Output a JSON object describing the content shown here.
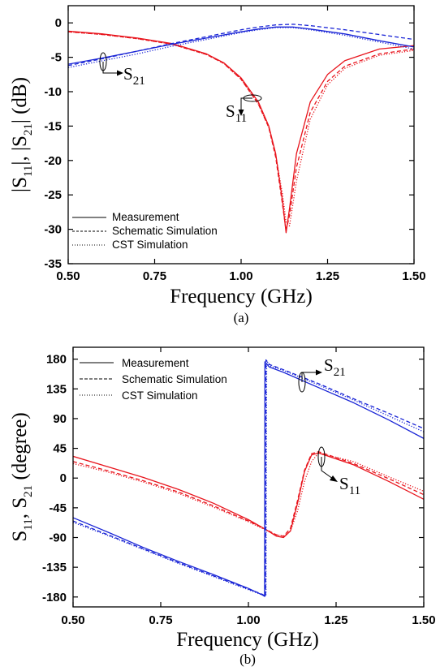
{
  "chart_data": [
    {
      "type": "line",
      "panel_label": "(a)",
      "xlabel": "Frequency (GHz)",
      "ylabel": "|S11|, |S21| (dB)",
      "ylabel_parts": {
        "a": "|S",
        "a_sub": "11",
        "b": "|, |S",
        "b_sub": "21",
        "c": "| (dB)"
      },
      "xlim": [
        0.5,
        1.5
      ],
      "ylim": [
        -35,
        2.5
      ],
      "x_ticks": [
        0.5,
        0.75,
        1.0,
        1.25,
        1.5
      ],
      "x_tick_labels": [
        "0.50",
        "0.75",
        "1.00",
        "1.25",
        "1.50"
      ],
      "y_ticks": [
        0,
        -5,
        -10,
        -15,
        -20,
        -25,
        -30,
        -35
      ],
      "y_tick_labels": [
        "0",
        "-5",
        "-10",
        "-15",
        "-20",
        "-25",
        "-30",
        "-35"
      ],
      "grid": false,
      "legend_position": "bottom-left",
      "legend": [
        {
          "label": "Measurement",
          "style": "solid"
        },
        {
          "label": "Schematic Simulation",
          "style": "dashed"
        },
        {
          "label": "CST Simulation",
          "style": "dotted"
        }
      ],
      "annotations": [
        {
          "text": "S",
          "sub": "21"
        },
        {
          "text": "S",
          "sub": "11"
        }
      ],
      "series": [
        {
          "name": "S11 Measurement",
          "color": "#e8141c",
          "style": "solid",
          "x": [
            0.5,
            0.6,
            0.7,
            0.8,
            0.9,
            0.95,
            1.0,
            1.05,
            1.08,
            1.1,
            1.12,
            1.13,
            1.14,
            1.16,
            1.2,
            1.25,
            1.3,
            1.4,
            1.5
          ],
          "y": [
            -1.2,
            -1.6,
            -2.2,
            -3.0,
            -4.5,
            -5.8,
            -8.0,
            -11.5,
            -15.0,
            -19.0,
            -26.0,
            -30.5,
            -27.0,
            -19.0,
            -11.5,
            -7.5,
            -5.5,
            -3.8,
            -3.3
          ]
        },
        {
          "name": "S11 Schematic Simulation",
          "color": "#e8141c",
          "style": "dashed",
          "x": [
            0.5,
            0.6,
            0.7,
            0.8,
            0.9,
            0.95,
            1.0,
            1.05,
            1.08,
            1.1,
            1.12,
            1.13,
            1.14,
            1.16,
            1.2,
            1.25,
            1.3,
            1.4,
            1.5
          ],
          "y": [
            -1.3,
            -1.7,
            -2.3,
            -3.1,
            -4.6,
            -5.9,
            -8.2,
            -11.8,
            -15.2,
            -19.5,
            -26.5,
            -30.2,
            -28.0,
            -21.0,
            -13.0,
            -8.5,
            -6.3,
            -4.5,
            -3.8
          ]
        },
        {
          "name": "S11 CST Simulation",
          "color": "#e8141c",
          "style": "dotted",
          "x": [
            0.5,
            0.6,
            0.7,
            0.8,
            0.9,
            0.95,
            1.0,
            1.05,
            1.08,
            1.1,
            1.12,
            1.13,
            1.14,
            1.16,
            1.2,
            1.25,
            1.3,
            1.4,
            1.5
          ],
          "y": [
            -1.3,
            -1.7,
            -2.3,
            -3.1,
            -4.6,
            -5.9,
            -8.2,
            -11.8,
            -15.2,
            -19.2,
            -25.0,
            -29.0,
            -29.5,
            -23.0,
            -14.0,
            -9.0,
            -6.6,
            -4.7,
            -4.0
          ]
        },
        {
          "name": "S21 Measurement",
          "color": "#1a25d6",
          "style": "solid",
          "x": [
            0.5,
            0.6,
            0.7,
            0.8,
            0.9,
            1.0,
            1.05,
            1.1,
            1.15,
            1.2,
            1.3,
            1.4,
            1.5
          ],
          "y": [
            -6.0,
            -5.1,
            -4.1,
            -3.1,
            -2.2,
            -1.3,
            -0.9,
            -0.6,
            -0.6,
            -0.9,
            -1.6,
            -2.6,
            -3.5
          ]
        },
        {
          "name": "S21 Schematic Simulation",
          "color": "#1a25d6",
          "style": "dashed",
          "x": [
            0.5,
            0.6,
            0.7,
            0.8,
            0.9,
            1.0,
            1.05,
            1.1,
            1.15,
            1.2,
            1.3,
            1.4,
            1.5
          ],
          "y": [
            -6.2,
            -5.2,
            -4.1,
            -3.0,
            -2.0,
            -1.0,
            -0.6,
            -0.3,
            -0.2,
            -0.4,
            -1.0,
            -1.7,
            -2.4
          ]
        },
        {
          "name": "S21 CST Simulation",
          "color": "#1a25d6",
          "style": "dotted",
          "x": [
            0.5,
            0.6,
            0.7,
            0.8,
            0.9,
            1.0,
            1.05,
            1.1,
            1.15,
            1.2,
            1.3,
            1.4,
            1.5
          ],
          "y": [
            -6.5,
            -5.5,
            -4.5,
            -3.4,
            -2.4,
            -1.4,
            -1.0,
            -0.7,
            -0.7,
            -1.0,
            -1.8,
            -2.8,
            -3.8
          ]
        }
      ]
    },
    {
      "type": "line",
      "panel_label": "(b)",
      "xlabel": "Frequency (GHz)",
      "ylabel": "S11, S21 (degree)",
      "ylabel_parts": {
        "a": "S",
        "a_sub": "11",
        "b": ", S",
        "b_sub": "21",
        "c": " (degree)"
      },
      "xlim": [
        0.5,
        1.5
      ],
      "ylim": [
        -195,
        198
      ],
      "x_ticks": [
        0.5,
        0.75,
        1.0,
        1.25,
        1.5
      ],
      "x_tick_labels": [
        "0.50",
        "0.75",
        "1.00",
        "1.25",
        "1.50"
      ],
      "y_ticks": [
        180,
        135,
        90,
        45,
        0,
        -45,
        -90,
        -135,
        -180
      ],
      "y_tick_labels": [
        "180",
        "135",
        "90",
        "45",
        "0",
        "-45",
        "-90",
        "-135",
        "-180"
      ],
      "grid": false,
      "legend_position": "top-left",
      "legend": [
        {
          "label": "Measurement",
          "style": "solid"
        },
        {
          "label": "Schematic Simulation",
          "style": "dashed"
        },
        {
          "label": "CST  Simulation",
          "style": "dotted"
        }
      ],
      "annotations": [
        {
          "text": "S",
          "sub": "21"
        },
        {
          "text": "S",
          "sub": "11"
        }
      ],
      "series": [
        {
          "name": "S11 Measurement",
          "color": "#e8141c",
          "style": "solid",
          "x": [
            0.5,
            0.6,
            0.7,
            0.8,
            0.9,
            1.0,
            1.05,
            1.08,
            1.1,
            1.12,
            1.14,
            1.16,
            1.18,
            1.2,
            1.3,
            1.4,
            1.5
          ],
          "y": [
            33,
            17,
            1,
            -17,
            -38,
            -63,
            -78,
            -88,
            -90,
            -80,
            -38,
            10,
            35,
            38,
            20,
            -5,
            -32
          ]
        },
        {
          "name": "S11 Schematic Simulation",
          "color": "#e8141c",
          "style": "dashed",
          "x": [
            0.5,
            0.6,
            0.7,
            0.8,
            0.9,
            1.0,
            1.05,
            1.08,
            1.1,
            1.12,
            1.14,
            1.16,
            1.18,
            1.2,
            1.3,
            1.4,
            1.5
          ],
          "y": [
            25,
            11,
            -4,
            -21,
            -42,
            -65,
            -78,
            -86,
            -88,
            -76,
            -34,
            12,
            37,
            40,
            22,
            -1,
            -25
          ]
        },
        {
          "name": "S11 CST Simulation",
          "color": "#e8141c",
          "style": "dotted",
          "x": [
            0.5,
            0.6,
            0.7,
            0.8,
            0.9,
            1.0,
            1.05,
            1.08,
            1.1,
            1.12,
            1.14,
            1.16,
            1.18,
            1.2,
            1.3,
            1.4,
            1.5
          ],
          "y": [
            22,
            9,
            -6,
            -23,
            -44,
            -66,
            -79,
            -86,
            -88,
            -80,
            -50,
            -5,
            25,
            38,
            25,
            2,
            -20
          ]
        },
        {
          "name": "S21 Measurement",
          "color": "#1a25d6",
          "style": "solid",
          "x": [
            0.5,
            0.6,
            0.7,
            0.8,
            0.9,
            1.0,
            1.04,
            1.046,
            1.047,
            1.06,
            1.1,
            1.2,
            1.3,
            1.4,
            1.5
          ],
          "y": [
            -60,
            -82,
            -105,
            -126,
            -146,
            -167,
            -177,
            -179,
            176,
            168,
            160,
            137,
            114,
            88,
            60
          ]
        },
        {
          "name": "S21 Schematic Simulation",
          "color": "#1a25d6",
          "style": "dashed",
          "x": [
            0.5,
            0.6,
            0.7,
            0.8,
            0.9,
            1.0,
            1.04,
            1.049,
            1.05,
            1.06,
            1.1,
            1.2,
            1.3,
            1.4,
            1.5
          ],
          "y": [
            -65,
            -86,
            -107,
            -128,
            -148,
            -168,
            -176,
            -179,
            179,
            172,
            164,
            143,
            120,
            98,
            75
          ]
        },
        {
          "name": "S21 CST Simulation",
          "color": "#1a25d6",
          "style": "dotted",
          "x": [
            0.5,
            0.6,
            0.7,
            0.8,
            0.9,
            1.0,
            1.04,
            1.05,
            1.052,
            1.06,
            1.1,
            1.2,
            1.3,
            1.4,
            1.5
          ],
          "y": [
            -67,
            -87,
            -108,
            -129,
            -149,
            -169,
            -177,
            -179,
            178,
            170,
            163,
            141,
            118,
            94,
            70
          ]
        }
      ]
    }
  ]
}
